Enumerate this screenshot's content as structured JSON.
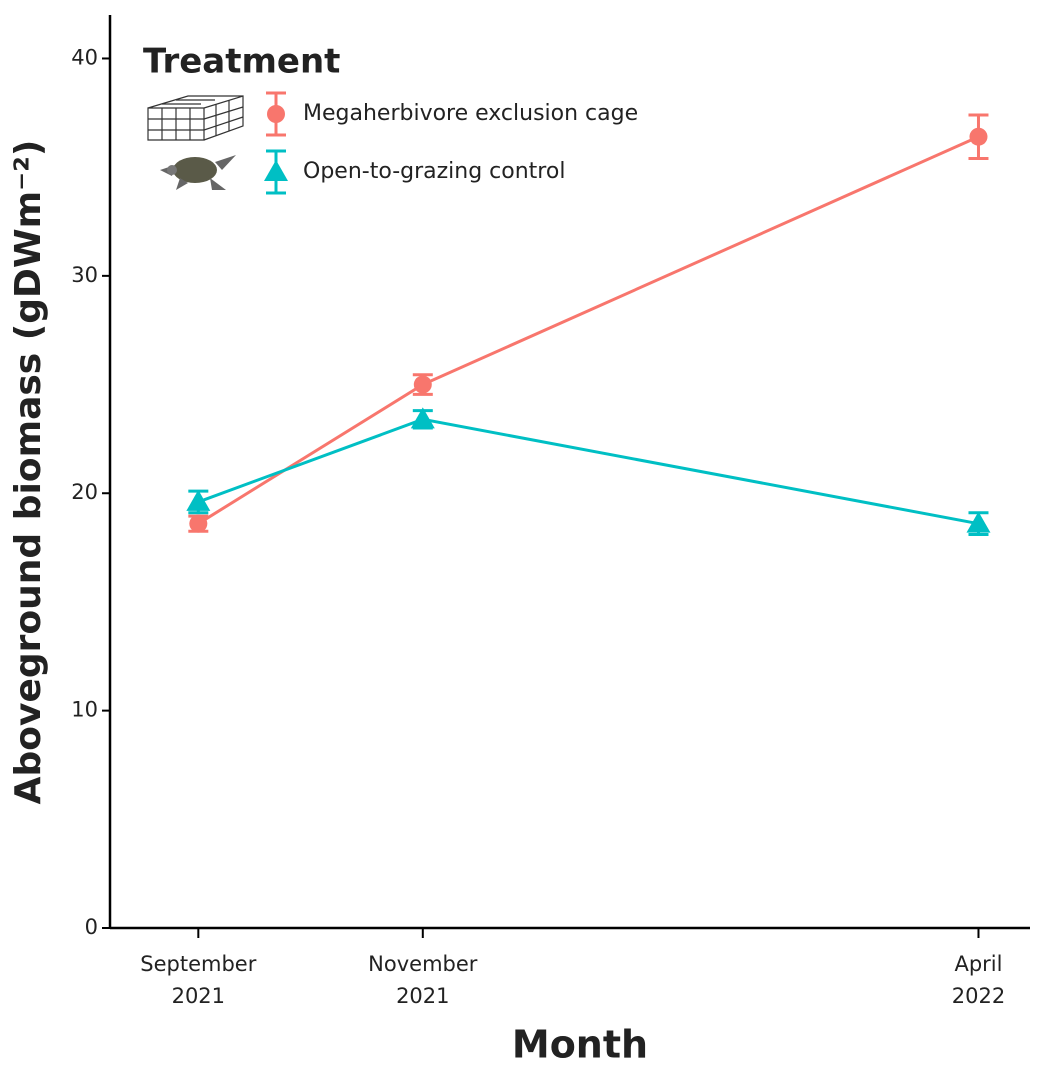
{
  "chart_data": {
    "type": "line",
    "x_label": "Month",
    "y_label": "Aboveground biomass (gDWm⁻²)",
    "legend_title": "Treatment",
    "legend_position": "top-left",
    "x": [
      "2021-09",
      "2021-11",
      "2022-04"
    ],
    "xlim": [
      "2021-08-08",
      "2022-04-15"
    ],
    "xticks": [
      {
        "value": "2021-09",
        "label": "September 2021"
      },
      {
        "value": "2021-11",
        "label": "November 2021"
      },
      {
        "value": "2022-04",
        "label": "April 2022"
      }
    ],
    "ylim": [
      0,
      42
    ],
    "yticks": [
      0,
      10,
      20,
      30,
      40
    ],
    "series": [
      {
        "name": "Megaherbivore exclusion cage",
        "color": "#F8766D",
        "marker": "circle",
        "values": [
          18.6,
          25.0,
          36.4
        ],
        "errors": [
          0.35,
          0.45,
          1.0
        ]
      },
      {
        "name": "Open-to-grazing control",
        "color": "#00BFC4",
        "marker": "triangle",
        "values": [
          19.6,
          23.4,
          18.6
        ],
        "errors": [
          0.5,
          0.4,
          0.5
        ]
      }
    ]
  }
}
